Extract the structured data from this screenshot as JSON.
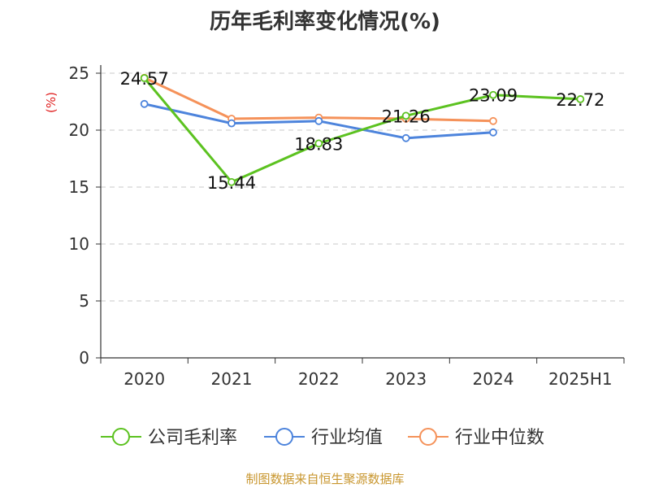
{
  "chart_data": {
    "type": "line",
    "title": "历年毛利率变化情况(%)",
    "ylabel": "(%)",
    "categories": [
      "2020",
      "2021",
      "2022",
      "2023",
      "2024",
      "2025H1"
    ],
    "ylim": [
      0,
      25
    ],
    "yticks": [
      0,
      5,
      10,
      15,
      20,
      25
    ],
    "grid": true,
    "legend_position": "bottom",
    "series": [
      {
        "name": "公司毛利率",
        "color": "#5cc220",
        "values": [
          24.57,
          15.44,
          18.83,
          21.26,
          23.09,
          22.72
        ],
        "labels": [
          "24.57",
          "15.44",
          "18.83",
          "21.26",
          "23.09",
          "22.72"
        ]
      },
      {
        "name": "行业均值",
        "color": "#4d84dc",
        "values": [
          22.3,
          20.6,
          20.8,
          19.3,
          19.8,
          null
        ]
      },
      {
        "name": "行业中位数",
        "color": "#f5925a",
        "values": [
          24.6,
          21.0,
          21.1,
          21.0,
          20.8,
          null
        ]
      }
    ]
  },
  "footer": {
    "source": "制图数据来自恒生聚源数据库"
  }
}
